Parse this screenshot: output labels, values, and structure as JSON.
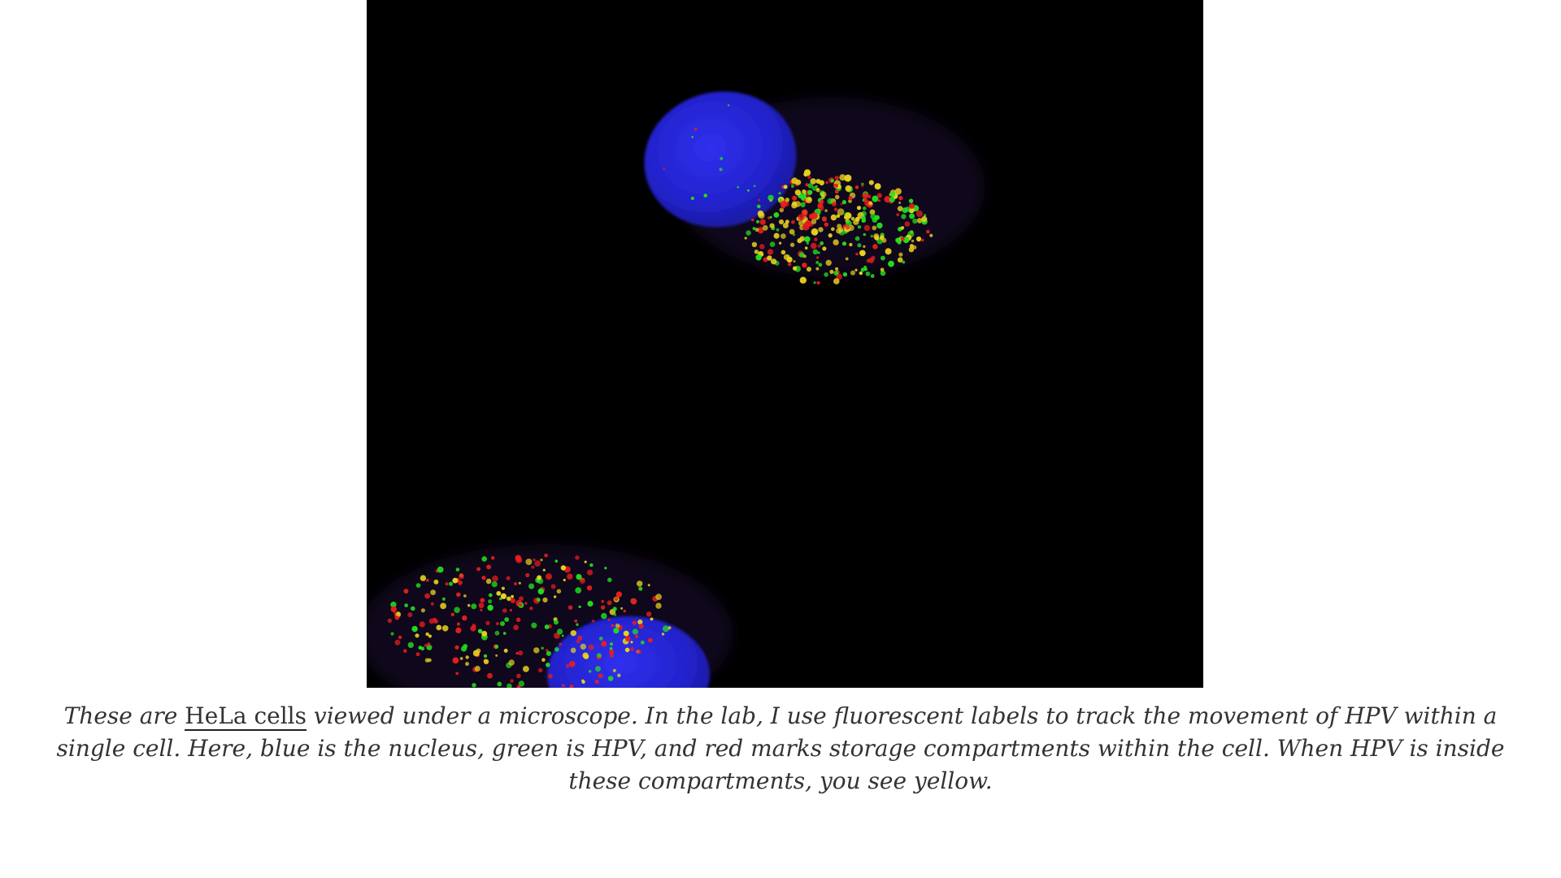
{
  "figure": {
    "image_icon": "fluorescence-microscopy-image",
    "colors": {
      "background": "#000000",
      "nucleus": "#2424d8",
      "hpv": "#22e01e",
      "compartments": "#e81e1e",
      "overlap": "#e8d020"
    },
    "caption": {
      "before_link": "These are ",
      "link_text": "HeLa cells",
      "after_link": " viewed under a microscope. In the lab, I use fluorescent labels to track the movement of HPV within a single cell. Here, blue is the nucleus, green is HPV, and red marks storage compartments within the cell. When HPV is inside these compartments, you see yellow."
    }
  }
}
